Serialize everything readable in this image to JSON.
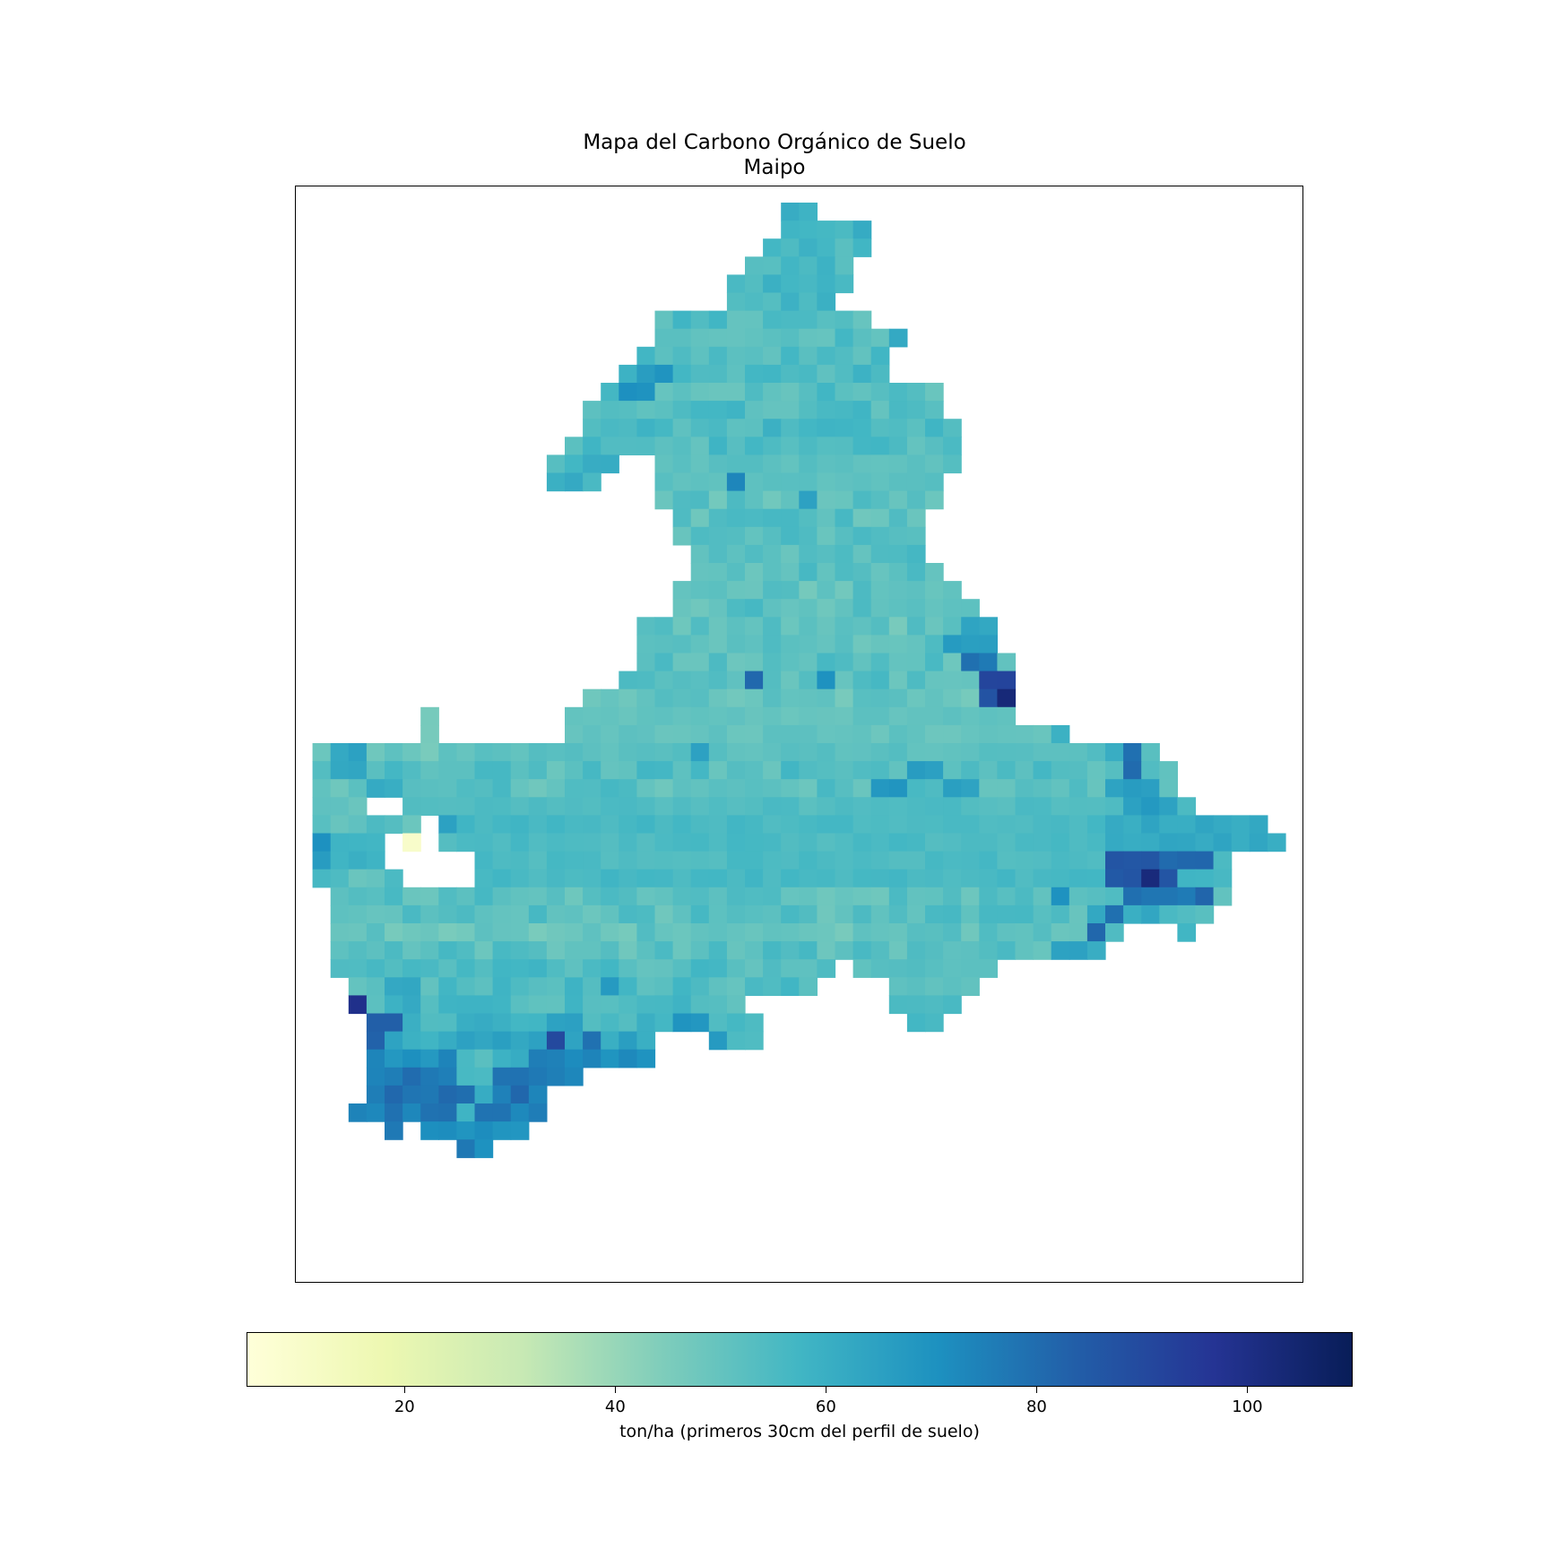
{
  "figure": {
    "title_line1": "Mapa del Carbono Orgánico de Suelo",
    "title_line2": "Maipo"
  },
  "colorbar": {
    "label": "ton/ha (primeros 30cm del perfil de suelo)",
    "colormap": "YlGnBu",
    "vmin": 5,
    "vmax": 110,
    "ticks": [
      20,
      40,
      60,
      80,
      100
    ],
    "stops": [
      "#ffffd9",
      "#edf8b1",
      "#c7e9b4",
      "#7fcdbb",
      "#41b6c4",
      "#1d91c0",
      "#225ea8",
      "#253494",
      "#081d58"
    ]
  },
  "chart_data": {
    "type": "heatmap",
    "title": "Mapa del Carbono Orgánico de Suelo\nMaipo",
    "value_label": "ton/ha (primeros 30cm del perfil de suelo)",
    "value_range": [
      5,
      110
    ],
    "grid": {
      "rows_from_top": [
        {
          "row": 0,
          "cells": [
            [
              27,
              28,
              57
            ]
          ]
        },
        {
          "row": 1,
          "cells": [
            [
              27,
              31,
              57
            ]
          ]
        },
        {
          "row": 2,
          "cells": [
            [
              26,
              31,
              56
            ]
          ]
        },
        {
          "row": 3,
          "cells": [
            [
              25,
              30,
              55
            ]
          ]
        },
        {
          "row": 4,
          "cells": [
            [
              24,
              30,
              56
            ]
          ]
        },
        {
          "row": 5,
          "cells": [
            [
              24,
              29,
              57
            ]
          ]
        },
        {
          "row": 6,
          "cells": [
            [
              20,
              31,
              54
            ]
          ]
        },
        {
          "row": 7,
          "cells": [
            [
              20,
              32,
              53
            ],
            [
              33,
              33,
              62
            ]
          ]
        },
        {
          "row": 8,
          "cells": [
            [
              19,
              32,
              54
            ]
          ]
        },
        {
          "row": 9,
          "cells": [
            [
              18,
              32,
              55
            ],
            [
              19,
              20,
              68
            ]
          ]
        },
        {
          "row": 10,
          "cells": [
            [
              17,
              35,
              53
            ],
            [
              18,
              19,
              70
            ]
          ]
        },
        {
          "row": 11,
          "cells": [
            [
              16,
              35,
              54
            ]
          ]
        },
        {
          "row": 12,
          "cells": [
            [
              16,
              36,
              55
            ]
          ]
        },
        {
          "row": 13,
          "cells": [
            [
              15,
              36,
              54
            ]
          ]
        },
        {
          "row": 14,
          "cells": [
            [
              14,
              17,
              57
            ],
            [
              20,
              36,
              52
            ]
          ]
        },
        {
          "row": 15,
          "cells": [
            [
              14,
              16,
              58
            ],
            [
              20,
              35,
              52
            ],
            [
              24,
              24,
              72
            ]
          ]
        },
        {
          "row": 16,
          "cells": [
            [
              20,
              35,
              51
            ],
            [
              28,
              28,
              66
            ]
          ]
        },
        {
          "row": 17,
          "cells": [
            [
              21,
              34,
              52
            ]
          ]
        },
        {
          "row": 18,
          "cells": [
            [
              21,
              34,
              52
            ]
          ]
        },
        {
          "row": 19,
          "cells": [
            [
              22,
              34,
              53
            ]
          ]
        },
        {
          "row": 20,
          "cells": [
            [
              22,
              35,
              52
            ]
          ]
        },
        {
          "row": 21,
          "cells": [
            [
              21,
              36,
              51
            ]
          ]
        },
        {
          "row": 22,
          "cells": [
            [
              21,
              37,
              52
            ]
          ]
        },
        {
          "row": 23,
          "cells": [
            [
              19,
              38,
              50
            ],
            [
              37,
              38,
              62
            ]
          ]
        },
        {
          "row": 24,
          "cells": [
            [
              19,
              38,
              51
            ],
            [
              36,
              38,
              66
            ]
          ]
        },
        {
          "row": 25,
          "cells": [
            [
              19,
              39,
              52
            ],
            [
              37,
              38,
              78
            ]
          ]
        },
        {
          "row": 26,
          "cells": [
            [
              18,
              39,
              52
            ],
            [
              25,
              25,
              80
            ],
            [
              29,
              29,
              70
            ],
            [
              38,
              39,
              90
            ]
          ]
        },
        {
          "row": 27,
          "cells": [
            [
              16,
              38,
              50
            ],
            [
              38,
              39,
              88
            ],
            [
              39,
              39,
              102
            ]
          ]
        },
        {
          "row": 28,
          "cells": [
            [
              7,
              7,
              48
            ],
            [
              15,
              39,
              50
            ]
          ]
        },
        {
          "row": 29,
          "cells": [
            [
              7,
              7,
              48
            ],
            [
              15,
              42,
              50
            ],
            [
              42,
              42,
              58
            ]
          ]
        },
        {
          "row": 30,
          "cells": [
            [
              1,
              9,
              50
            ],
            [
              2,
              3,
              64
            ],
            [
              10,
              47,
              52
            ],
            [
              22,
              22,
              65
            ],
            [
              45,
              46,
              62
            ],
            [
              46,
              46,
              80
            ]
          ]
        },
        {
          "row": 31,
          "cells": [
            [
              1,
              48,
              53
            ],
            [
              2,
              3,
              62
            ],
            [
              46,
              46,
              82
            ],
            [
              34,
              35,
              66
            ]
          ]
        },
        {
          "row": 32,
          "cells": [
            [
              1,
              48,
              52
            ],
            [
              4,
              5,
              60
            ],
            [
              32,
              33,
              68
            ],
            [
              36,
              37,
              66
            ],
            [
              45,
              47,
              65
            ]
          ]
        },
        {
          "row": 33,
          "cells": [
            [
              1,
              4,
              52
            ],
            [
              6,
              49,
              54
            ],
            [
              46,
              48,
              66
            ]
          ]
        },
        {
          "row": 34,
          "cells": [
            [
              1,
              6,
              52
            ],
            [
              8,
              53,
              56
            ],
            [
              45,
              53,
              62
            ],
            [
              8,
              8,
              64
            ]
          ]
        },
        {
          "row": 35,
          "cells": [
            [
              1,
              5,
              56
            ],
            [
              8,
              54,
              55
            ],
            [
              45,
              54,
              62
            ],
            [
              1,
              1,
              72
            ]
          ]
        },
        {
          "row": 36,
          "cells": [
            [
              1,
              5,
              56
            ],
            [
              10,
              51,
              55
            ],
            [
              45,
              47,
              88
            ],
            [
              48,
              50,
              82
            ],
            [
              1,
              1,
              66
            ]
          ]
        },
        {
          "row": 37,
          "cells": [
            [
              1,
              6,
              52
            ],
            [
              10,
              51,
              56
            ],
            [
              45,
              48,
              85
            ],
            [
              47,
              47,
              104
            ]
          ]
        },
        {
          "row": 38,
          "cells": [
            [
              2,
              51,
              52
            ],
            [
              46,
              50,
              78
            ],
            [
              50,
              50,
              82
            ],
            [
              42,
              42,
              70
            ]
          ]
        },
        {
          "row": 39,
          "cells": [
            [
              2,
              50,
              52
            ],
            [
              44,
              47,
              62
            ],
            [
              45,
              45,
              80
            ]
          ]
        },
        {
          "row": 40,
          "cells": [
            [
              2,
              45,
              50
            ],
            [
              44,
              44,
              80
            ],
            [
              49,
              49,
              58
            ]
          ]
        },
        {
          "row": 41,
          "cells": [
            [
              2,
              44,
              52
            ],
            [
              42,
              43,
              64
            ],
            [
              44,
              44,
              62
            ]
          ]
        },
        {
          "row": 42,
          "cells": [
            [
              2,
              29,
              54
            ],
            [
              31,
              38,
              52
            ],
            [
              2,
              4,
              56
            ]
          ]
        },
        {
          "row": 43,
          "cells": [
            [
              3,
              28,
              54
            ],
            [
              33,
              37,
              52
            ],
            [
              5,
              6,
              64
            ],
            [
              17,
              17,
              66
            ]
          ]
        },
        {
          "row": 44,
          "cells": [
            [
              3,
              24,
              55
            ],
            [
              33,
              36,
              54
            ],
            [
              3,
              3,
              100
            ],
            [
              5,
              6,
              60
            ]
          ]
        },
        {
          "row": 45,
          "cells": [
            [
              4,
              25,
              57
            ],
            [
              34,
              35,
              56
            ],
            [
              4,
              5,
              82
            ],
            [
              14,
              15,
              66
            ],
            [
              21,
              22,
              68
            ]
          ]
        },
        {
          "row": 46,
          "cells": [
            [
              4,
              19,
              62
            ],
            [
              23,
              25,
              55
            ],
            [
              4,
              4,
              82
            ],
            [
              14,
              14,
              90
            ],
            [
              16,
              16,
              80
            ],
            [
              23,
              23,
              66
            ]
          ]
        },
        {
          "row": 47,
          "cells": [
            [
              4,
              19,
              72
            ],
            [
              9,
              10,
              54
            ],
            [
              11,
              12,
              60
            ]
          ]
        },
        {
          "row": 48,
          "cells": [
            [
              4,
              15,
              76
            ],
            [
              9,
              10,
              56
            ]
          ]
        },
        {
          "row": 49,
          "cells": [
            [
              4,
              13,
              78
            ],
            [
              10,
              10,
              60
            ]
          ]
        },
        {
          "row": 50,
          "cells": [
            [
              3,
              13,
              76
            ],
            [
              9,
              9,
              60
            ]
          ]
        },
        {
          "row": 51,
          "cells": [
            [
              5,
              5,
              78
            ],
            [
              7,
              12,
              70
            ]
          ]
        },
        {
          "row": 52,
          "cells": [
            [
              9,
              10,
              74
            ]
          ]
        }
      ],
      "note_cells": "each cell triple is [start_col, end_col, value_ton_ha]; later triples in a row override earlier ones",
      "cols": 56,
      "rows": 60,
      "nodata_holes": [
        {
          "row": 33,
          "cols": [
            4,
            4
          ]
        },
        {
          "row": 35,
          "cols": [
            5,
            7
          ]
        },
        {
          "row": 36,
          "cols": [
            5,
            9
          ]
        },
        {
          "row": 37,
          "cols": [
            6,
            8
          ]
        }
      ],
      "special_cells": [
        {
          "row": 35,
          "col": 6,
          "value": 10
        }
      ]
    }
  }
}
